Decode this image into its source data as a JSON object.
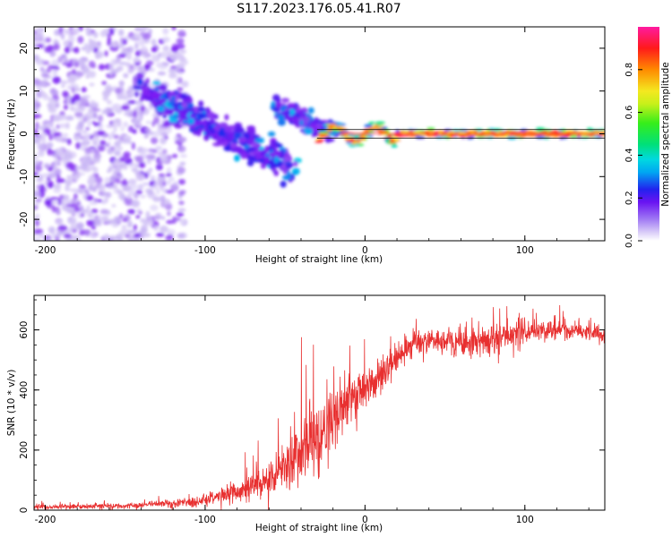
{
  "page": {
    "title": "S117.2023.176.05.41.R07"
  },
  "colors": {
    "snr_line": "#e83030",
    "axes": "#000000",
    "background": "#ffffff",
    "ridge_line": "#000000"
  },
  "chart_data": [
    {
      "id": "spectrogram",
      "type": "heatmap",
      "title": "S117.2023.176.05.41.R07",
      "xlabel": "Height of straight line (km)",
      "ylabel": "Frequency (Hz)",
      "xlim": [
        -207,
        150
      ],
      "ylim": [
        -25,
        25
      ],
      "xticks": [
        -200,
        -100,
        0,
        100
      ],
      "yticks": [
        -20,
        -10,
        0,
        10,
        20
      ],
      "colorbar": {
        "label": "Normalized spectral amplitude",
        "range": [
          0,
          1
        ],
        "ticks": [
          "0.0",
          "0.2",
          "0.4",
          "0.6",
          "0.8"
        ],
        "colormap": [
          "#ffffff",
          "#c7b4f4",
          "#7c1cf2",
          "#2222ee",
          "#00c8f0",
          "#00e08a",
          "#4ef014",
          "#f4f020",
          "#ff8a00",
          "#ff1a1a",
          "#ff1aa0"
        ]
      },
      "features": {
        "noise_region_x": [
          -207,
          -120
        ],
        "diagonal_branch_1": {
          "x": [
            -140,
            -45
          ],
          "freq": [
            10,
            -8
          ]
        },
        "diagonal_branch_2": {
          "x": [
            -55,
            -20
          ],
          "freq": [
            6,
            0
          ]
        },
        "carrier_band": {
          "x": [
            -30,
            150
          ],
          "freq": 0,
          "peak_amplitude": 0.95
        },
        "ridge_lines_hz": [
          1,
          -1
        ]
      }
    },
    {
      "id": "snr",
      "type": "line",
      "xlabel": "Height of straight line (km)",
      "ylabel": "SNR (10 * v/v)",
      "xlim": [
        -207,
        150
      ],
      "ylim": [
        0,
        715
      ],
      "xticks": [
        -200,
        -100,
        0,
        100
      ],
      "yticks": [
        0,
        200,
        400,
        600
      ],
      "series": [
        {
          "envelope": {
            "x": [
              -207,
              -180,
              -150,
              -130,
              -110,
              -100,
              -90,
              -80,
              -70,
              -60,
              -50,
              -40,
              -30,
              -20,
              -10,
              0,
              10,
              20,
              30,
              40,
              60,
              80,
              100,
              120,
              140,
              150
            ],
            "mean": [
              10,
              12,
              14,
              20,
              25,
              35,
              45,
              60,
              80,
              110,
              150,
              200,
              230,
              300,
              360,
              400,
              440,
              510,
              560,
              560,
              560,
              570,
              590,
              600,
              590,
              580
            ],
            "spread": [
              8,
              8,
              8,
              10,
              15,
              20,
              25,
              35,
              45,
              60,
              80,
              120,
              130,
              110,
              80,
              70,
              60,
              50,
              40,
              40,
              50,
              50,
              40,
              30,
              25,
              20
            ]
          }
        }
      ]
    }
  ]
}
